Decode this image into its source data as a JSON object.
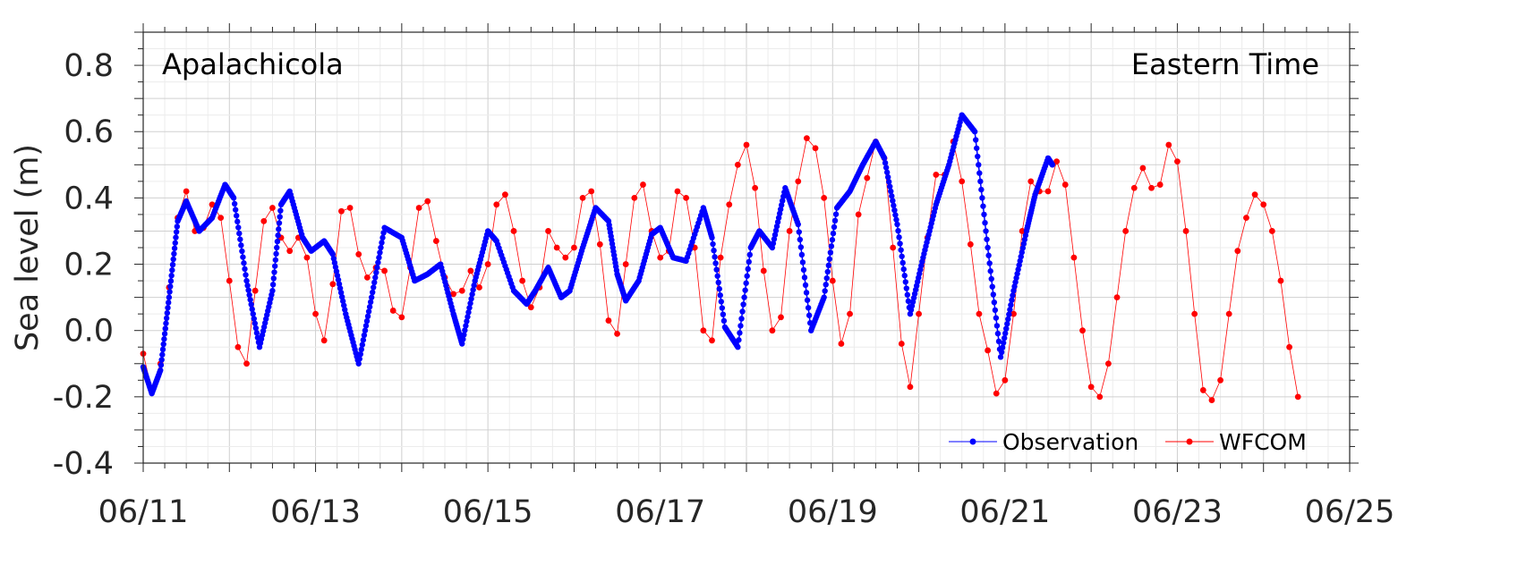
{
  "chart_data": {
    "type": "line",
    "annotations": {
      "station": "Apalachicola",
      "timezone": "Eastern Time"
    },
    "ylabel": "Sea level (m)",
    "xlabel": "",
    "x_ticks": [
      "06/11",
      "06/13",
      "06/15",
      "06/17",
      "06/19",
      "06/21",
      "06/23",
      "06/25"
    ],
    "y_ticks": [
      "-0.4",
      "-0.2",
      "0.0",
      "0.2",
      "0.4",
      "0.6",
      "0.8"
    ],
    "xlim": [
      "2024-06-11 00:00",
      "2024-06-25 00:00"
    ],
    "ylim": [
      -0.4,
      0.9
    ],
    "grid": true,
    "legend_position": "bottom-right",
    "x_unit_note": "x values in days since 06/11 00:00",
    "series": [
      {
        "name": "Observation",
        "color": "#0000ff",
        "marker": "dot",
        "x": [
          0.0,
          0.1,
          0.2,
          0.3,
          0.4,
          0.5,
          0.65,
          0.8,
          0.95,
          1.05,
          1.2,
          1.35,
          1.5,
          1.6,
          1.7,
          1.85,
          1.95,
          2.1,
          2.2,
          2.35,
          2.5,
          2.65,
          2.8,
          3.0,
          3.15,
          3.3,
          3.45,
          3.6,
          3.7,
          3.85,
          4.0,
          4.1,
          4.3,
          4.45,
          4.55,
          4.7,
          4.85,
          4.95,
          5.1,
          5.25,
          5.4,
          5.5,
          5.6,
          5.75,
          5.9,
          6.0,
          6.15,
          6.3,
          6.5,
          6.6,
          6.75,
          6.9,
          7.05,
          7.15,
          7.3,
          7.45,
          7.6,
          7.75,
          7.9,
          8.05,
          8.2,
          8.35,
          8.5,
          8.6,
          8.75,
          8.9,
          9.05,
          9.2,
          9.35,
          9.5,
          9.65,
          9.8,
          9.95,
          10.1,
          10.25,
          10.35,
          10.5,
          10.55
        ],
        "y": [
          -0.11,
          -0.19,
          -0.12,
          0.1,
          0.33,
          0.39,
          0.3,
          0.34,
          0.44,
          0.4,
          0.15,
          -0.05,
          0.12,
          0.38,
          0.42,
          0.28,
          0.24,
          0.27,
          0.23,
          0.05,
          -0.1,
          0.1,
          0.31,
          0.28,
          0.15,
          0.17,
          0.2,
          0.05,
          -0.04,
          0.15,
          0.3,
          0.27,
          0.12,
          0.08,
          0.12,
          0.19,
          0.1,
          0.12,
          0.25,
          0.37,
          0.33,
          0.17,
          0.09,
          0.15,
          0.29,
          0.31,
          0.22,
          0.21,
          0.37,
          0.28,
          0.01,
          -0.05,
          0.25,
          0.3,
          0.25,
          0.43,
          0.32,
          0.0,
          0.1,
          0.37,
          0.42,
          0.5,
          0.57,
          0.52,
          0.32,
          0.05,
          0.22,
          0.38,
          0.5,
          0.65,
          0.6,
          0.25,
          -0.08,
          0.12,
          0.3,
          0.41,
          0.52,
          0.5
        ]
      },
      {
        "name": "WFCOM",
        "color": "#ff0000",
        "marker": "dot",
        "x": [
          0.0,
          0.1,
          0.2,
          0.3,
          0.4,
          0.5,
          0.6,
          0.7,
          0.8,
          0.9,
          1.0,
          1.1,
          1.2,
          1.3,
          1.4,
          1.5,
          1.6,
          1.7,
          1.8,
          1.9,
          2.0,
          2.1,
          2.2,
          2.3,
          2.4,
          2.5,
          2.6,
          2.7,
          2.8,
          2.9,
          3.0,
          3.1,
          3.2,
          3.3,
          3.4,
          3.5,
          3.6,
          3.7,
          3.8,
          3.9,
          4.0,
          4.1,
          4.2,
          4.3,
          4.4,
          4.5,
          4.6,
          4.7,
          4.8,
          4.9,
          5.0,
          5.1,
          5.2,
          5.3,
          5.4,
          5.5,
          5.6,
          5.7,
          5.8,
          5.9,
          6.0,
          6.1,
          6.2,
          6.3,
          6.4,
          6.5,
          6.6,
          6.7,
          6.8,
          6.9,
          7.0,
          7.1,
          7.2,
          7.3,
          7.4,
          7.5,
          7.6,
          7.7,
          7.8,
          7.9,
          8.0,
          8.1,
          8.2,
          8.3,
          8.4,
          8.5,
          8.6,
          8.7,
          8.8,
          8.9,
          9.0,
          9.1,
          9.2,
          9.3,
          9.4,
          9.5,
          9.6,
          9.7,
          9.8,
          9.9,
          10.0,
          10.1,
          10.2,
          10.3,
          10.4,
          10.5,
          10.6,
          10.7,
          10.8,
          10.9,
          11.0,
          11.1,
          11.2,
          11.3,
          11.4,
          11.5,
          11.6,
          11.7,
          11.8,
          11.9,
          12.0,
          12.1,
          12.2,
          12.3,
          12.4,
          12.5,
          12.6,
          12.7,
          12.8,
          12.9,
          13.0,
          13.1,
          13.2,
          13.3,
          13.4
        ],
        "y": [
          -0.07,
          -0.18,
          -0.1,
          0.13,
          0.34,
          0.42,
          0.3,
          0.31,
          0.38,
          0.34,
          0.15,
          -0.05,
          -0.1,
          0.12,
          0.33,
          0.37,
          0.28,
          0.24,
          0.28,
          0.22,
          0.05,
          -0.03,
          0.14,
          0.36,
          0.37,
          0.23,
          0.16,
          0.19,
          0.18,
          0.06,
          0.04,
          0.19,
          0.37,
          0.39,
          0.27,
          0.16,
          0.11,
          0.12,
          0.18,
          0.13,
          0.2,
          0.38,
          0.41,
          0.3,
          0.15,
          0.07,
          0.13,
          0.3,
          0.25,
          0.22,
          0.25,
          0.4,
          0.42,
          0.26,
          0.03,
          -0.01,
          0.2,
          0.4,
          0.44,
          0.3,
          0.22,
          0.24,
          0.42,
          0.4,
          0.25,
          0.0,
          -0.03,
          0.22,
          0.38,
          0.5,
          0.56,
          0.43,
          0.18,
          0.0,
          0.04,
          0.3,
          0.45,
          0.58,
          0.55,
          0.4,
          0.15,
          -0.04,
          0.05,
          0.35,
          0.46,
          0.57,
          0.52,
          0.25,
          -0.04,
          -0.17,
          0.05,
          0.28,
          0.47,
          0.47,
          0.57,
          0.45,
          0.26,
          0.05,
          -0.06,
          -0.19,
          -0.15,
          0.05,
          0.3,
          0.45,
          0.42,
          0.42,
          0.51,
          0.44,
          0.22,
          0.0,
          -0.17,
          -0.2,
          -0.1,
          0.1,
          0.3,
          0.43,
          0.49,
          0.43,
          0.44,
          0.56,
          0.51,
          0.3,
          0.05,
          -0.18,
          -0.21,
          -0.15,
          0.05,
          0.24,
          0.34,
          0.41,
          0.38,
          0.3,
          0.15,
          -0.05,
          -0.2
        ]
      }
    ]
  }
}
